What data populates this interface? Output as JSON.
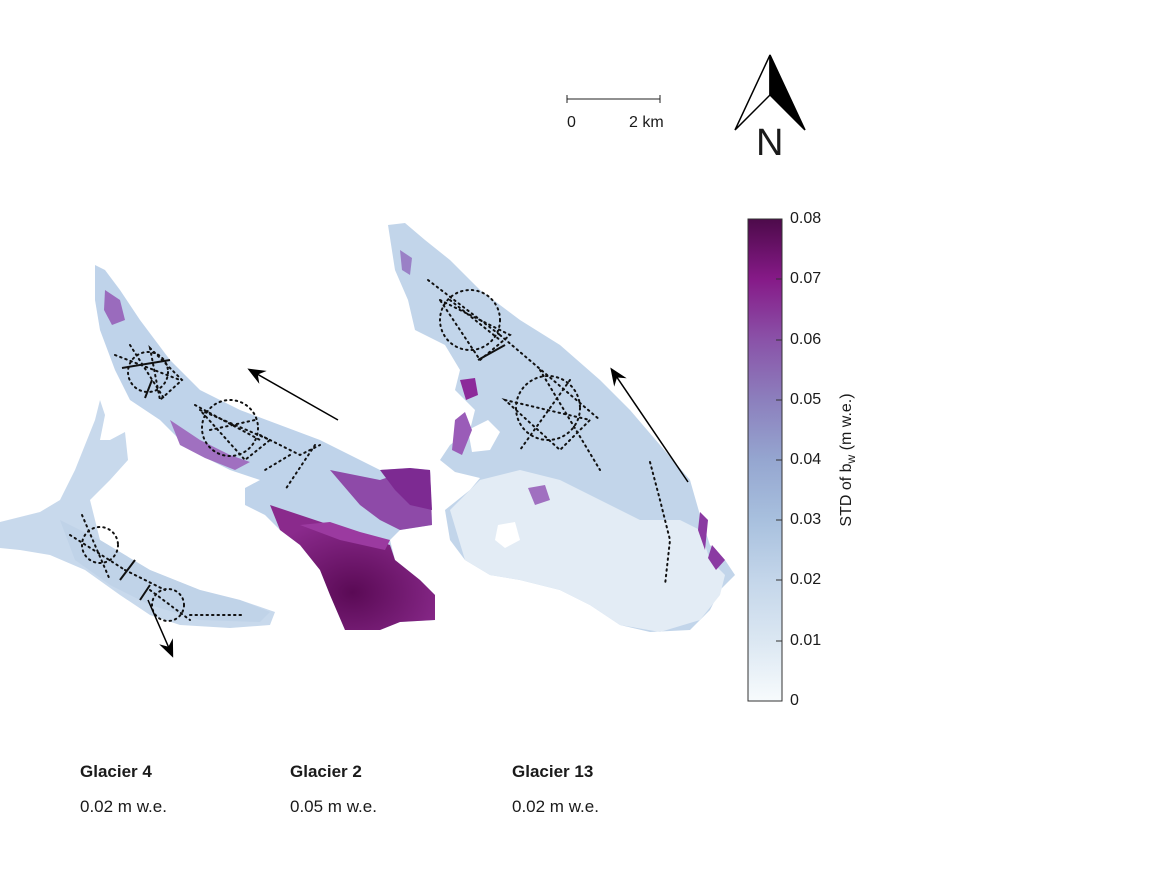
{
  "scale_bar": {
    "start_label": "0",
    "end_label": "2 km"
  },
  "north_arrow": {
    "label": "N"
  },
  "colorbar": {
    "title_prefix": "STD of b",
    "title_subscript": "w",
    "title_suffix": " (m w.e.)",
    "ticks": [
      "0.08",
      "0.07",
      "0.06",
      "0.05",
      "0.04",
      "0.03",
      "0.02",
      "0.01",
      "0"
    ],
    "range": [
      0,
      0.08
    ],
    "colors": [
      "#f7fbfd",
      "#dbe7f2",
      "#b7cde4",
      "#9bb1d6",
      "#8c8fc4",
      "#8a63b0",
      "#871a8a",
      "#4d0a4a"
    ]
  },
  "glaciers": [
    {
      "name": "Glacier 4",
      "value": "0.02 m w.e."
    },
    {
      "name": "Glacier 2",
      "value": "0.05 m w.e."
    },
    {
      "name": "Glacier 13",
      "value": "0.02 m w.e."
    }
  ]
}
